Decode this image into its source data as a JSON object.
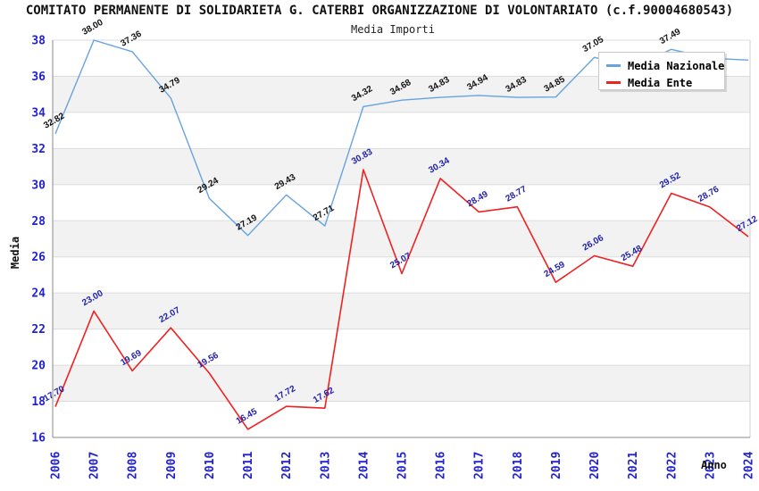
{
  "title": "COMITATO PERMANENTE DI SOLIDARIETA G. CATERBI ORGANIZZAZIONE DI VOLONTARIATO (c.f.90004680543)",
  "subtitle": "Media Importi",
  "legend": {
    "items": [
      {
        "label": "Media Nazionale",
        "color": "#66a3e0"
      },
      {
        "label": "Media Ente",
        "color": "#ee2222"
      }
    ]
  },
  "colors": {
    "band": "#f2f2f2",
    "grid": "#dcdcdc",
    "frame_light": "#cfcfcf",
    "axis": "#8a8a8a",
    "tick_blue": "#2222cc",
    "blue_line": "#66a3e0",
    "red_line": "#ee2222",
    "blue_series_label": "#111111",
    "red_series_label": "#2222aa"
  },
  "chart_data": {
    "type": "line",
    "title": "Media Importi",
    "xlabel": "Anno",
    "ylabel": "Media",
    "ylim": [
      16,
      38
    ],
    "ytick_step": 2,
    "grid": true,
    "legend_position": "top-right",
    "categories": [
      "2006",
      "2007",
      "2008",
      "2009",
      "2010",
      "2011",
      "2012",
      "2013",
      "2014",
      "2015",
      "2016",
      "2017",
      "2018",
      "2019",
      "2020",
      "2021",
      "2022",
      "2023",
      "2024"
    ],
    "series": [
      {
        "name": "Media Nazionale",
        "color": "#66a3e0",
        "label_color": "#111111",
        "values": [
          32.82,
          38.0,
          37.36,
          34.79,
          29.24,
          27.19,
          29.43,
          27.71,
          34.32,
          34.68,
          34.83,
          34.94,
          34.83,
          34.85,
          37.05,
          36.5,
          37.49,
          37.0,
          36.9
        ],
        "labels": [
          "32.82",
          "38.00",
          "37.36",
          "34.79",
          "29.24",
          "27.19",
          "29.43",
          "27.71",
          "34.32",
          "34.68",
          "34.83",
          "34.94",
          "34.83",
          "34.85",
          "37.05",
          null,
          "37.49",
          null,
          null
        ],
        "occluded_by_legend_indices": [
          15,
          17,
          18
        ]
      },
      {
        "name": "Media Ente",
        "color": "#ee2222",
        "label_color": "#2222aa",
        "values": [
          17.7,
          23.0,
          19.69,
          22.07,
          19.56,
          16.45,
          17.72,
          17.62,
          30.83,
          25.07,
          30.34,
          28.49,
          28.77,
          24.59,
          26.06,
          25.48,
          29.52,
          28.76,
          27.12
        ],
        "labels": [
          "17.70",
          "23.00",
          "19.69",
          "22.07",
          "19.56",
          "16.45",
          "17.72",
          "17.62",
          "30.83",
          "25.07",
          "30.34",
          "28.49",
          "28.77",
          "24.59",
          "26.06",
          "25.48",
          "29.52",
          "28.76",
          "27.12"
        ],
        "occluded_by_legend_indices": []
      }
    ]
  }
}
